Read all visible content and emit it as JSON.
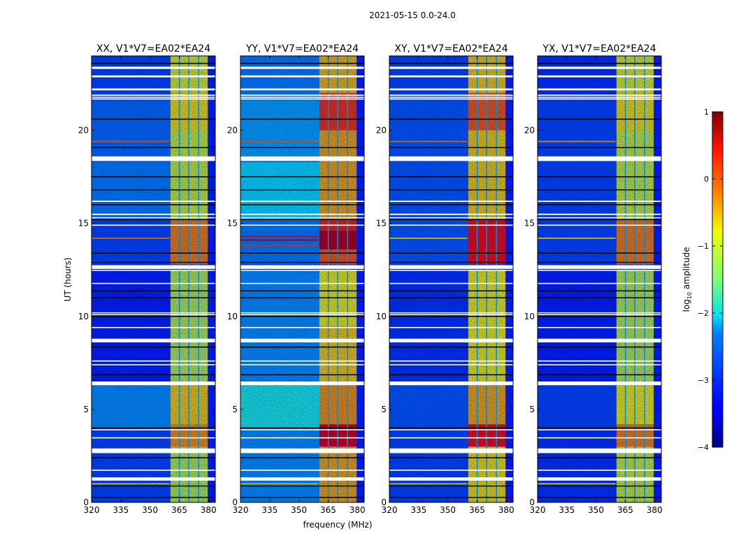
{
  "chart_data": {
    "type": "heatmap",
    "title": "2021-05-15 0.0-24.0",
    "xlabel": "frequency (MHz)",
    "ylabel": "UT (hours)",
    "xlim": [
      320,
      383.5
    ],
    "ylim": [
      0,
      24
    ],
    "xticks": [
      320,
      335,
      350,
      365,
      380
    ],
    "yticks": [
      0,
      5,
      10,
      15,
      20
    ],
    "colorbar": {
      "label_main": "log",
      "label_sub": "10",
      "label_rest": " amplitude",
      "range": [
        -4,
        1
      ],
      "ticks": [
        1,
        0,
        -1,
        -2,
        -3,
        -4
      ],
      "tick_labels": [
        "1",
        "0",
        "−1",
        "−2",
        "−3",
        "−4"
      ],
      "colormap": "jet"
    },
    "band_columns_mhz": [
      [
        360.5,
        365.0
      ],
      [
        365.3,
        369.8
      ],
      [
        370.1,
        374.9
      ],
      [
        375.2,
        379.6
      ]
    ],
    "band_gap_level": -2.4,
    "flagged_rows_ut": [
      [
        23.3,
        23.42
      ],
      [
        22.85,
        22.95
      ],
      [
        22.15,
        22.25
      ],
      [
        21.85,
        21.92
      ],
      [
        21.75,
        21.8
      ],
      [
        21.65,
        21.72
      ],
      [
        18.35,
        18.6
      ],
      [
        16.15,
        16.22
      ],
      [
        15.45,
        15.52
      ],
      [
        15.27,
        15.33
      ],
      [
        14.87,
        14.93
      ],
      [
        12.55,
        12.75
      ],
      [
        12.45,
        12.5
      ],
      [
        11.74,
        11.8
      ],
      [
        10.17,
        10.22
      ],
      [
        10.07,
        10.12
      ],
      [
        9.37,
        9.43
      ],
      [
        8.6,
        8.8
      ],
      [
        7.57,
        7.63
      ],
      [
        7.37,
        7.43
      ],
      [
        6.3,
        6.5
      ],
      [
        3.87,
        3.93
      ],
      [
        3.44,
        3.5
      ],
      [
        2.65,
        2.9
      ],
      [
        1.7,
        1.76
      ],
      [
        1.17,
        1.35
      ]
    ],
    "black_lines_ut": [
      23.6,
      20.6,
      19.07,
      17.5,
      16.8,
      16.0,
      15.2,
      13.4,
      12.9,
      11.37,
      11.0,
      10.0,
      8.35,
      6.86,
      4.0,
      2.4,
      0.88,
      0.27
    ],
    "panels": [
      {
        "title": "XX, V1*V7=EA02*EA24",
        "background": [
          [
            0,
            4,
            -3.0
          ],
          [
            4,
            6.3,
            -2.6
          ],
          [
            6.5,
            12.5,
            -3.2
          ],
          [
            12.8,
            15.2,
            -3.0
          ],
          [
            15.2,
            18.3,
            -2.7
          ],
          [
            18.6,
            21.6,
            -2.8
          ],
          [
            21.6,
            24,
            -3.0
          ]
        ],
        "band": [
          [
            0,
            3,
            -1.2
          ],
          [
            3,
            4.2,
            -0.4
          ],
          [
            4.2,
            6.3,
            -0.7
          ],
          [
            6.5,
            12.5,
            -1.2
          ],
          [
            12.8,
            15.2,
            -0.3
          ],
          [
            15.2,
            20,
            -1.1
          ],
          [
            20,
            22,
            -0.8
          ],
          [
            22,
            24,
            -1.0
          ]
        ],
        "rfi_lines": [
          [
            14.2,
            -0.3
          ],
          [
            19.4,
            -0.2
          ],
          [
            1.0,
            -0.8
          ]
        ]
      },
      {
        "title": "YY, V1*V7=EA02*EA24",
        "background": [
          [
            0,
            4,
            -2.6
          ],
          [
            4,
            6.3,
            -2.0
          ],
          [
            6.5,
            12.5,
            -2.6
          ],
          [
            12.8,
            15.2,
            -2.7
          ],
          [
            15.2,
            18.3,
            -2.2
          ],
          [
            18.6,
            21.6,
            -2.5
          ],
          [
            21.6,
            24,
            -2.7
          ]
        ],
        "band": [
          [
            0,
            3,
            -0.5
          ],
          [
            3,
            4.2,
            0.5
          ],
          [
            4.2,
            6.3,
            -0.4
          ],
          [
            6.5,
            9.5,
            -0.7
          ],
          [
            9.5,
            12.5,
            -0.9
          ],
          [
            12.8,
            13.6,
            -0.1
          ],
          [
            13.6,
            14.6,
            0.7
          ],
          [
            14.6,
            15.2,
            0.2
          ],
          [
            15.2,
            20,
            -0.5
          ],
          [
            20,
            22,
            0.1
          ],
          [
            22,
            24,
            -0.6
          ]
        ],
        "rfi_lines": [
          [
            14.3,
            0.3
          ],
          [
            14.1,
            0.6
          ],
          [
            13.8,
            0.0
          ],
          [
            19.4,
            -0.2
          ],
          [
            1.0,
            -0.8
          ]
        ]
      },
      {
        "title": "XY, V1*V7=EA02*EA24",
        "background": [
          [
            0,
            4,
            -3.0
          ],
          [
            4,
            6.3,
            -2.9
          ],
          [
            6.5,
            12.5,
            -3.1
          ],
          [
            12.8,
            15.2,
            -2.9
          ],
          [
            15.2,
            18.3,
            -2.9
          ],
          [
            18.6,
            21.6,
            -2.9
          ],
          [
            21.6,
            24,
            -3.0
          ]
        ],
        "band": [
          [
            0,
            3,
            -0.8
          ],
          [
            3,
            4.2,
            0.3
          ],
          [
            4.2,
            6.3,
            -0.5
          ],
          [
            6.5,
            12.5,
            -0.9
          ],
          [
            12.8,
            15.2,
            0.3
          ],
          [
            15.2,
            20,
            -0.7
          ],
          [
            20,
            22,
            -0.1
          ],
          [
            22,
            24,
            -0.7
          ]
        ],
        "rfi_lines": [
          [
            14.2,
            -0.8
          ],
          [
            19.4,
            -0.3
          ],
          [
            1.0,
            -0.8
          ]
        ]
      },
      {
        "title": "YX, V1*V7=EA02*EA24",
        "background": [
          [
            0,
            4,
            -3.1
          ],
          [
            4,
            6.3,
            -3.0
          ],
          [
            6.5,
            12.5,
            -3.2
          ],
          [
            12.8,
            15.2,
            -3.0
          ],
          [
            15.2,
            18.3,
            -3.0
          ],
          [
            18.6,
            21.6,
            -3.0
          ],
          [
            21.6,
            24,
            -3.1
          ]
        ],
        "band": [
          [
            0,
            3,
            -1.1
          ],
          [
            3,
            4.2,
            -0.3
          ],
          [
            4.2,
            6.3,
            -0.9
          ],
          [
            6.5,
            12.5,
            -1.2
          ],
          [
            12.8,
            15.2,
            -0.3
          ],
          [
            15.2,
            20,
            -1.1
          ],
          [
            20,
            22,
            -0.8
          ],
          [
            22,
            24,
            -1.0
          ]
        ],
        "rfi_lines": [
          [
            14.2,
            -0.8
          ],
          [
            19.4,
            -0.5
          ],
          [
            1.0,
            -0.9
          ]
        ]
      }
    ]
  }
}
